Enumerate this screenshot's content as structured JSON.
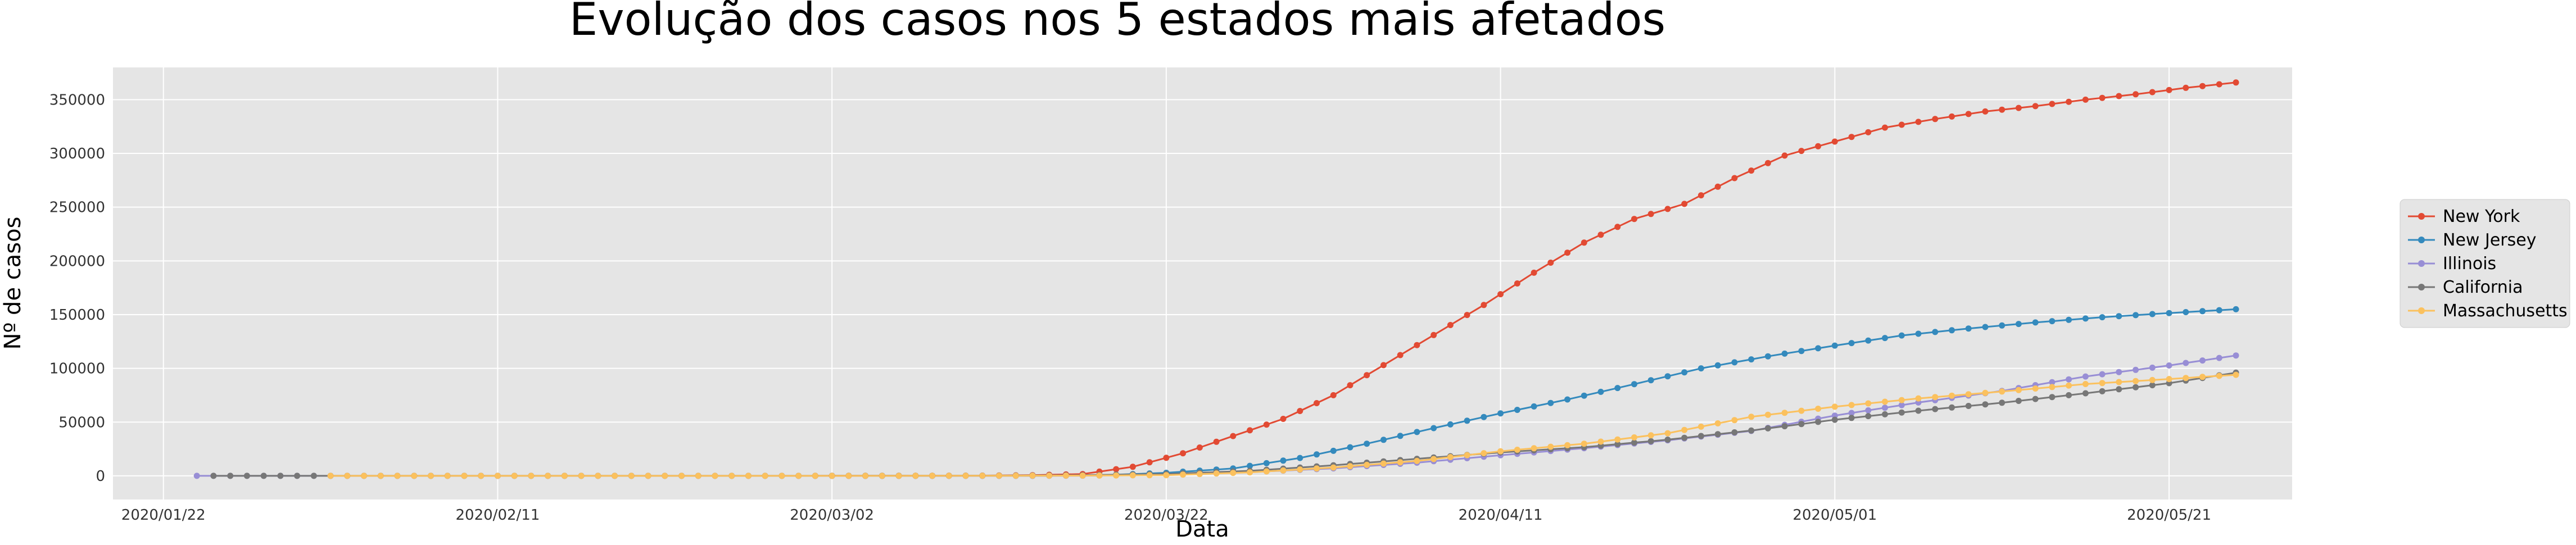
{
  "chart_data": {
    "type": "line",
    "title": "Evolução dos casos nos 5 estados mais afetados",
    "xlabel": "Data",
    "ylabel": "Nº de casos",
    "x_start": "2020-01-21",
    "x_end": "2020-05-25",
    "ylim": [
      -22000,
      380000
    ],
    "xticks": [
      "2020/01/22",
      "2020/02/11",
      "2020/03/02",
      "2020/03/22",
      "2020/04/11",
      "2020/05/01",
      "2020/05/21"
    ],
    "yticks": [
      "0",
      "50000",
      "100000",
      "150000",
      "200000",
      "250000",
      "300000",
      "350000"
    ],
    "grid": true,
    "legend_position": "right",
    "series": [
      {
        "name": "New York",
        "color": "#e24a33",
        "start": "2020-03-01",
        "points": [
          [
            "2020-03-01",
            0
          ],
          [
            "2020-03-05",
            22
          ],
          [
            "2020-03-08",
            105
          ],
          [
            "2020-03-11",
            216
          ],
          [
            "2020-03-14",
            613
          ],
          [
            "2020-03-17",
            1700
          ],
          [
            "2020-03-20",
            8400
          ],
          [
            "2020-03-23",
            21000
          ],
          [
            "2020-03-26",
            37000
          ],
          [
            "2020-03-29",
            53000
          ],
          [
            "2020-04-01",
            75000
          ],
          [
            "2020-04-04",
            103000
          ],
          [
            "2020-04-07",
            131000
          ],
          [
            "2020-04-10",
            159000
          ],
          [
            "2020-04-13",
            189000
          ],
          [
            "2020-04-16",
            217000
          ],
          [
            "2020-04-19",
            239000
          ],
          [
            "2020-04-22",
            253000
          ],
          [
            "2020-04-25",
            277000
          ],
          [
            "2020-04-28",
            298000
          ],
          [
            "2020-05-01",
            311000
          ],
          [
            "2020-05-04",
            324000
          ],
          [
            "2020-05-07",
            332000
          ],
          [
            "2020-05-10",
            339000
          ],
          [
            "2020-05-13",
            344000
          ],
          [
            "2020-05-16",
            350000
          ],
          [
            "2020-05-19",
            355000
          ],
          [
            "2020-05-22",
            361000
          ],
          [
            "2020-05-25",
            366000
          ]
        ]
      },
      {
        "name": "New Jersey",
        "color": "#348abd",
        "start": "2020-03-04",
        "points": [
          [
            "2020-03-04",
            0
          ],
          [
            "2020-03-10",
            15
          ],
          [
            "2020-03-14",
            69
          ],
          [
            "2020-03-18",
            427
          ],
          [
            "2020-03-22",
            2844
          ],
          [
            "2020-03-26",
            6876
          ],
          [
            "2020-03-30",
            16636
          ],
          [
            "2020-04-03",
            29895
          ],
          [
            "2020-04-07",
            44416
          ],
          [
            "2020-04-11",
            58151
          ],
          [
            "2020-04-15",
            71030
          ],
          [
            "2020-04-19",
            85301
          ],
          [
            "2020-04-23",
            99989
          ],
          [
            "2020-04-27",
            111188
          ],
          [
            "2020-05-01",
            121190
          ],
          [
            "2020-05-05",
            130593
          ],
          [
            "2020-05-09",
            137085
          ],
          [
            "2020-05-13",
            142704
          ],
          [
            "2020-05-17",
            147593
          ],
          [
            "2020-05-21",
            151472
          ],
          [
            "2020-05-25",
            155000
          ]
        ]
      },
      {
        "name": "Illinois",
        "color": "#988ed5",
        "start": "2020-01-24",
        "points": [
          [
            "2020-01-24",
            1
          ],
          [
            "2020-02-20",
            2
          ],
          [
            "2020-03-05",
            6
          ],
          [
            "2020-03-12",
            32
          ],
          [
            "2020-03-17",
            160
          ],
          [
            "2020-03-22",
            1285
          ],
          [
            "2020-03-27",
            3491
          ],
          [
            "2020-04-01",
            6980
          ],
          [
            "2020-04-06",
            12262
          ],
          [
            "2020-04-11",
            19180
          ],
          [
            "2020-04-16",
            25733
          ],
          [
            "2020-04-21",
            33059
          ],
          [
            "2020-04-26",
            41777
          ],
          [
            "2020-05-01",
            56055
          ],
          [
            "2020-05-06",
            68232
          ],
          [
            "2020-05-11",
            79007
          ],
          [
            "2020-05-16",
            92457
          ],
          [
            "2020-05-21",
            102686
          ],
          [
            "2020-05-25",
            112000
          ]
        ]
      },
      {
        "name": "California",
        "color": "#777777",
        "start": "2020-01-25",
        "points": [
          [
            "2020-01-25",
            1
          ],
          [
            "2020-02-10",
            6
          ],
          [
            "2020-02-25",
            10
          ],
          [
            "2020-03-05",
            53
          ],
          [
            "2020-03-12",
            198
          ],
          [
            "2020-03-17",
            598
          ],
          [
            "2020-03-22",
            1733
          ],
          [
            "2020-03-27",
            4643
          ],
          [
            "2020-04-01",
            9816
          ],
          [
            "2020-04-06",
            15865
          ],
          [
            "2020-04-11",
            21794
          ],
          [
            "2020-04-16",
            26686
          ],
          [
            "2020-04-21",
            33686
          ],
          [
            "2020-04-26",
            42164
          ],
          [
            "2020-05-01",
            52197
          ],
          [
            "2020-05-06",
            60614
          ],
          [
            "2020-05-11",
            68000
          ],
          [
            "2020-05-16",
            76800
          ],
          [
            "2020-05-21",
            86193
          ],
          [
            "2020-05-25",
            96000
          ]
        ]
      },
      {
        "name": "Massachusetts",
        "color": "#fbc15e",
        "start": "2020-02-01",
        "points": [
          [
            "2020-02-01",
            1
          ],
          [
            "2020-02-25",
            1
          ],
          [
            "2020-03-05",
            7
          ],
          [
            "2020-03-12",
            108
          ],
          [
            "2020-03-17",
            218
          ],
          [
            "2020-03-22",
            646
          ],
          [
            "2020-03-27",
            3240
          ],
          [
            "2020-04-01",
            7738
          ],
          [
            "2020-04-06",
            13837
          ],
          [
            "2020-04-11",
            22860
          ],
          [
            "2020-04-16",
            29918
          ],
          [
            "2020-04-21",
            39643
          ],
          [
            "2020-04-26",
            54938
          ],
          [
            "2020-05-01",
            64311
          ],
          [
            "2020-05-06",
            72025
          ],
          [
            "2020-05-11",
            78462
          ],
          [
            "2020-05-16",
            85407
          ],
          [
            "2020-05-21",
            90084
          ],
          [
            "2020-05-25",
            94000
          ]
        ]
      }
    ]
  }
}
